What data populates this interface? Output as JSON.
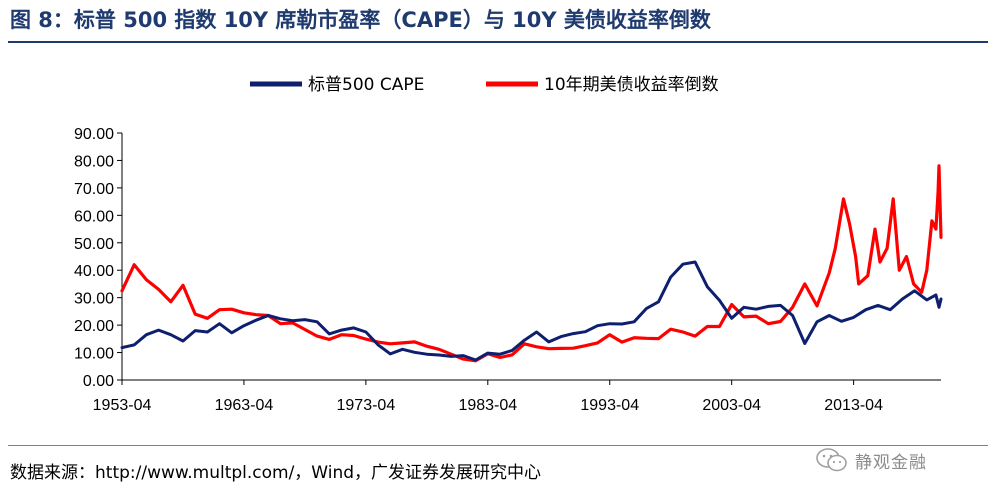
{
  "figure": {
    "title": "图 8：标普 500 指数 10Y 席勒市盈率（CAPE）与 10Y 美债收益率倒数",
    "source": "数据来源：http://www.multpl.com/，Wind，广发证券发展研究中心",
    "watermark": "静观金融"
  },
  "colors": {
    "cape": "#0d1f6e",
    "inverse_yield": "#ff0000",
    "title": "#1f3a6e",
    "axis": "#000000"
  },
  "chart_data": {
    "type": "line",
    "title": "",
    "xlabel": "",
    "ylabel": "",
    "ylim": [
      0,
      90
    ],
    "yticks": [
      "0.00",
      "10.00",
      "20.00",
      "30.00",
      "40.00",
      "50.00",
      "60.00",
      "70.00",
      "80.00",
      "90.00"
    ],
    "xticks": [
      "1953-04",
      "1963-04",
      "1973-04",
      "1983-04",
      "1993-04",
      "2003-04",
      "2013-04"
    ],
    "xlim": [
      "1953-04",
      "2020-06"
    ],
    "grid": false,
    "legend_position": "top-center",
    "series": [
      {
        "name": "标普500 CAPE",
        "color": "#0d1f6e",
        "points": [
          [
            "1953-04",
            11.8
          ],
          [
            "1954-04",
            12.8
          ],
          [
            "1955-04",
            16.5
          ],
          [
            "1956-04",
            18.2
          ],
          [
            "1957-04",
            16.5
          ],
          [
            "1958-04",
            14.2
          ],
          [
            "1959-04",
            18.0
          ],
          [
            "1960-04",
            17.5
          ],
          [
            "1961-04",
            20.5
          ],
          [
            "1962-04",
            17.2
          ],
          [
            "1963-04",
            19.8
          ],
          [
            "1964-04",
            21.8
          ],
          [
            "1965-04",
            23.5
          ],
          [
            "1966-04",
            22.3
          ],
          [
            "1967-04",
            21.6
          ],
          [
            "1968-04",
            22.0
          ],
          [
            "1969-04",
            21.2
          ],
          [
            "1970-04",
            16.8
          ],
          [
            "1971-04",
            18.2
          ],
          [
            "1972-04",
            19.0
          ],
          [
            "1973-04",
            17.5
          ],
          [
            "1974-04",
            12.8
          ],
          [
            "1975-04",
            9.5
          ],
          [
            "1976-04",
            11.2
          ],
          [
            "1977-04",
            10.1
          ],
          [
            "1978-04",
            9.4
          ],
          [
            "1979-04",
            9.1
          ],
          [
            "1980-04",
            8.6
          ],
          [
            "1981-04",
            8.9
          ],
          [
            "1982-04",
            7.3
          ],
          [
            "1983-04",
            9.8
          ],
          [
            "1984-04",
            9.4
          ],
          [
            "1985-04",
            10.8
          ],
          [
            "1986-04",
            14.5
          ],
          [
            "1987-04",
            17.5
          ],
          [
            "1988-04",
            13.9
          ],
          [
            "1989-04",
            15.8
          ],
          [
            "1990-04",
            16.9
          ],
          [
            "1991-04",
            17.6
          ],
          [
            "1992-04",
            19.8
          ],
          [
            "1993-04",
            20.5
          ],
          [
            "1994-04",
            20.4
          ],
          [
            "1995-04",
            21.2
          ],
          [
            "1996-04",
            26.0
          ],
          [
            "1997-04",
            28.5
          ],
          [
            "1998-04",
            37.5
          ],
          [
            "1999-04",
            42.2
          ],
          [
            "2000-04",
            43.0
          ],
          [
            "2001-04",
            34.0
          ],
          [
            "2002-04",
            29.0
          ],
          [
            "2003-04",
            22.5
          ],
          [
            "2004-04",
            26.5
          ],
          [
            "2005-04",
            25.8
          ],
          [
            "2006-04",
            26.8
          ],
          [
            "2007-04",
            27.2
          ],
          [
            "2008-04",
            23.5
          ],
          [
            "2009-04",
            13.3
          ],
          [
            "2010-04",
            21.2
          ],
          [
            "2011-04",
            23.5
          ],
          [
            "2012-04",
            21.4
          ],
          [
            "2013-04",
            22.8
          ],
          [
            "2014-04",
            25.6
          ],
          [
            "2015-04",
            27.2
          ],
          [
            "2016-04",
            25.6
          ],
          [
            "2017-04",
            29.5
          ],
          [
            "2018-04",
            32.5
          ],
          [
            "2019-04",
            29.2
          ],
          [
            "2020-01",
            31.0
          ],
          [
            "2020-04",
            26.5
          ],
          [
            "2020-06",
            29.5
          ]
        ]
      },
      {
        "name": "10年期美债收益率倒数",
        "color": "#ff0000",
        "points": [
          [
            "1953-04",
            32.5
          ],
          [
            "1954-04",
            42.0
          ],
          [
            "1955-04",
            36.5
          ],
          [
            "1956-04",
            33.0
          ],
          [
            "1957-04",
            28.5
          ],
          [
            "1958-04",
            34.5
          ],
          [
            "1959-04",
            24.0
          ],
          [
            "1960-04",
            22.5
          ],
          [
            "1961-04",
            25.6
          ],
          [
            "1962-04",
            25.8
          ],
          [
            "1963-04",
            24.5
          ],
          [
            "1964-04",
            23.8
          ],
          [
            "1965-04",
            23.5
          ],
          [
            "1966-04",
            20.5
          ],
          [
            "1967-04",
            20.8
          ],
          [
            "1968-04",
            18.4
          ],
          [
            "1969-04",
            16.0
          ],
          [
            "1970-04",
            14.8
          ],
          [
            "1971-04",
            16.5
          ],
          [
            "1972-04",
            16.2
          ],
          [
            "1973-04",
            14.9
          ],
          [
            "1974-04",
            13.8
          ],
          [
            "1975-04",
            13.2
          ],
          [
            "1976-04",
            13.5
          ],
          [
            "1977-04",
            13.9
          ],
          [
            "1978-04",
            12.3
          ],
          [
            "1979-04",
            11.2
          ],
          [
            "1980-04",
            9.4
          ],
          [
            "1981-04",
            7.6
          ],
          [
            "1982-04",
            7.0
          ],
          [
            "1983-04",
            9.6
          ],
          [
            "1984-04",
            8.2
          ],
          [
            "1985-04",
            9.2
          ],
          [
            "1986-04",
            13.2
          ],
          [
            "1987-04",
            12.1
          ],
          [
            "1988-04",
            11.4
          ],
          [
            "1989-04",
            11.5
          ],
          [
            "1990-04",
            11.6
          ],
          [
            "1991-04",
            12.5
          ],
          [
            "1992-04",
            13.5
          ],
          [
            "1993-04",
            16.5
          ],
          [
            "1994-04",
            13.8
          ],
          [
            "1995-04",
            15.4
          ],
          [
            "1996-04",
            15.2
          ],
          [
            "1997-04",
            15.1
          ],
          [
            "1998-04",
            18.5
          ],
          [
            "1999-04",
            17.5
          ],
          [
            "2000-04",
            16.0
          ],
          [
            "2001-04",
            19.5
          ],
          [
            "2002-04",
            19.5
          ],
          [
            "2003-04",
            27.5
          ],
          [
            "2004-04",
            23.0
          ],
          [
            "2005-04",
            23.3
          ],
          [
            "2006-04",
            20.5
          ],
          [
            "2007-04",
            21.3
          ],
          [
            "2008-04",
            26.5
          ],
          [
            "2009-04",
            35.0
          ],
          [
            "2010-04",
            27.0
          ],
          [
            "2011-04",
            39.0
          ],
          [
            "2011-10",
            48.0
          ],
          [
            "2012-06",
            66.0
          ],
          [
            "2012-12",
            57.0
          ],
          [
            "2013-06",
            45.0
          ],
          [
            "2013-09",
            35.0
          ],
          [
            "2014-06",
            38.0
          ],
          [
            "2015-01",
            55.0
          ],
          [
            "2015-06",
            43.0
          ],
          [
            "2016-01",
            48.0
          ],
          [
            "2016-07",
            66.0
          ],
          [
            "2017-01",
            40.0
          ],
          [
            "2017-08",
            45.0
          ],
          [
            "2018-03",
            35.0
          ],
          [
            "2018-11",
            32.0
          ],
          [
            "2019-04",
            40.0
          ],
          [
            "2019-09",
            58.0
          ],
          [
            "2020-01",
            55.0
          ],
          [
            "2020-03",
            68.0
          ],
          [
            "2020-04",
            78.0
          ],
          [
            "2020-06",
            52.0
          ]
        ]
      }
    ]
  }
}
